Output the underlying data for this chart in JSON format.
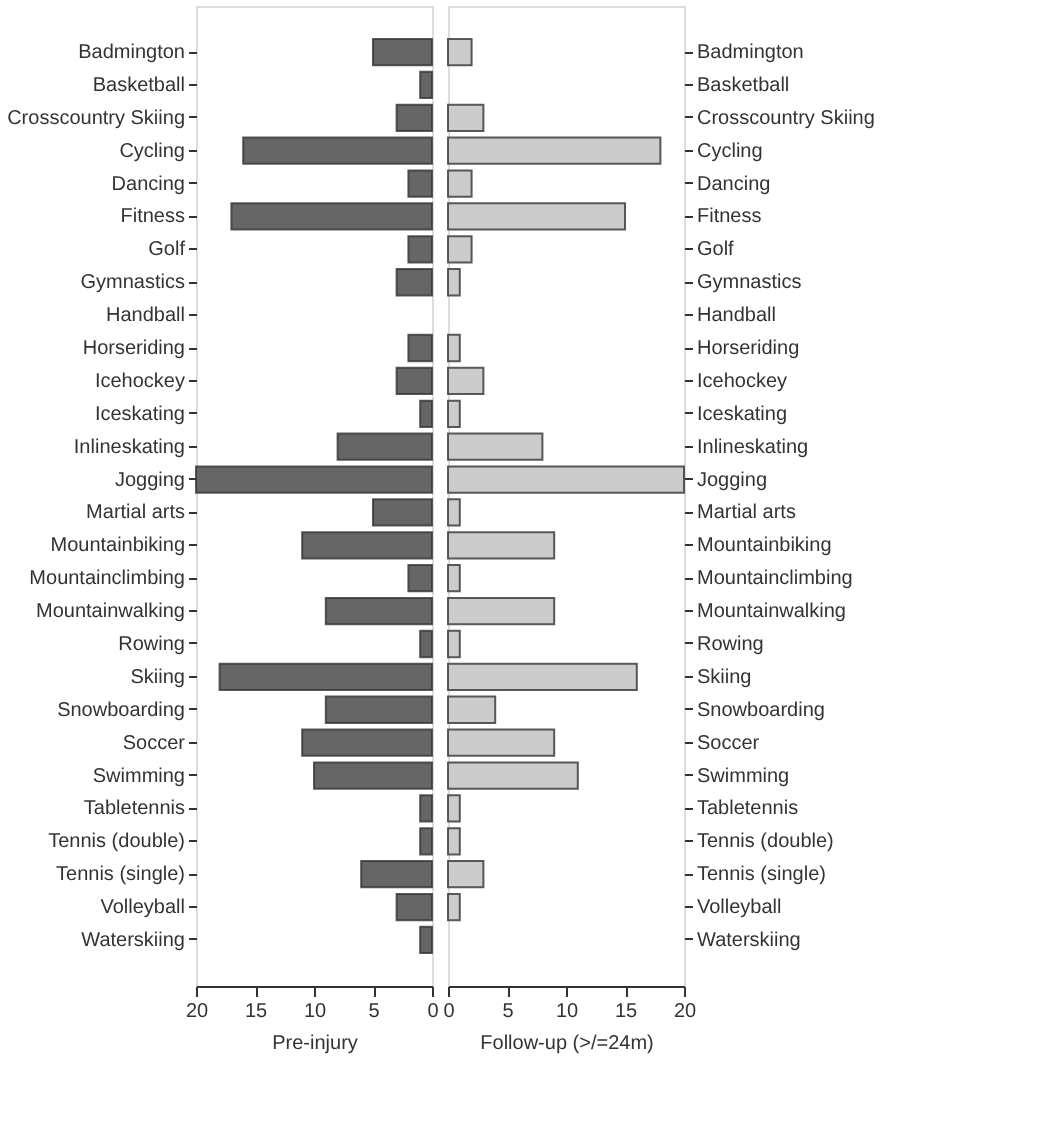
{
  "chart_data": [
    {
      "type": "bar",
      "orientation": "horizontal",
      "xlabel": "Pre-injury",
      "xlim": [
        20,
        0
      ],
      "xticks": [
        20,
        15,
        10,
        5,
        0
      ],
      "grid": false,
      "color": "#666666",
      "categories": [
        "Badmington",
        "Basketball",
        "Crosscountry Skiing",
        "Cycling",
        "Dancing",
        "Fitness",
        "Golf",
        "Gymnastics",
        "Handball",
        "Horseriding",
        "Icehockey",
        "Iceskating",
        "Inlineskating",
        "Jogging",
        "Martial arts",
        "Mountainbiking",
        "Mountainclimbing",
        "Mountainwalking",
        "Rowing",
        "Skiing",
        "Snowboarding",
        "Soccer",
        "Swimming",
        "Tabletennis",
        "Tennis (double)",
        "Tennis (single)",
        "Volleyball",
        "Waterskiing"
      ],
      "values": [
        5,
        1,
        3,
        16,
        2,
        17,
        2,
        3,
        0,
        2,
        3,
        1,
        8,
        20,
        5,
        11,
        2,
        9,
        1,
        18,
        9,
        11,
        10,
        1,
        1,
        6,
        3,
        1
      ]
    },
    {
      "type": "bar",
      "orientation": "horizontal",
      "xlabel": "Follow-up (>/=24m)",
      "xlim": [
        0,
        20
      ],
      "xticks": [
        0,
        5,
        10,
        15,
        20
      ],
      "grid": false,
      "color": "#cccccc",
      "categories": [
        "Badmington",
        "Basketball",
        "Crosscountry Skiing",
        "Cycling",
        "Dancing",
        "Fitness",
        "Golf",
        "Gymnastics",
        "Handball",
        "Horseriding",
        "Icehockey",
        "Iceskating",
        "Inlineskating",
        "Jogging",
        "Martial arts",
        "Mountainbiking",
        "Mountainclimbing",
        "Mountainwalking",
        "Rowing",
        "Skiing",
        "Snowboarding",
        "Soccer",
        "Swimming",
        "Tabletennis",
        "Tennis (double)",
        "Tennis (single)",
        "Volleyball",
        "Waterskiing"
      ],
      "values": [
        2,
        0,
        3,
        18,
        2,
        15,
        2,
        1,
        0,
        1,
        3,
        1,
        8,
        20,
        1,
        9,
        1,
        9,
        1,
        16,
        4,
        9,
        11,
        1,
        1,
        3,
        1,
        0
      ]
    }
  ]
}
